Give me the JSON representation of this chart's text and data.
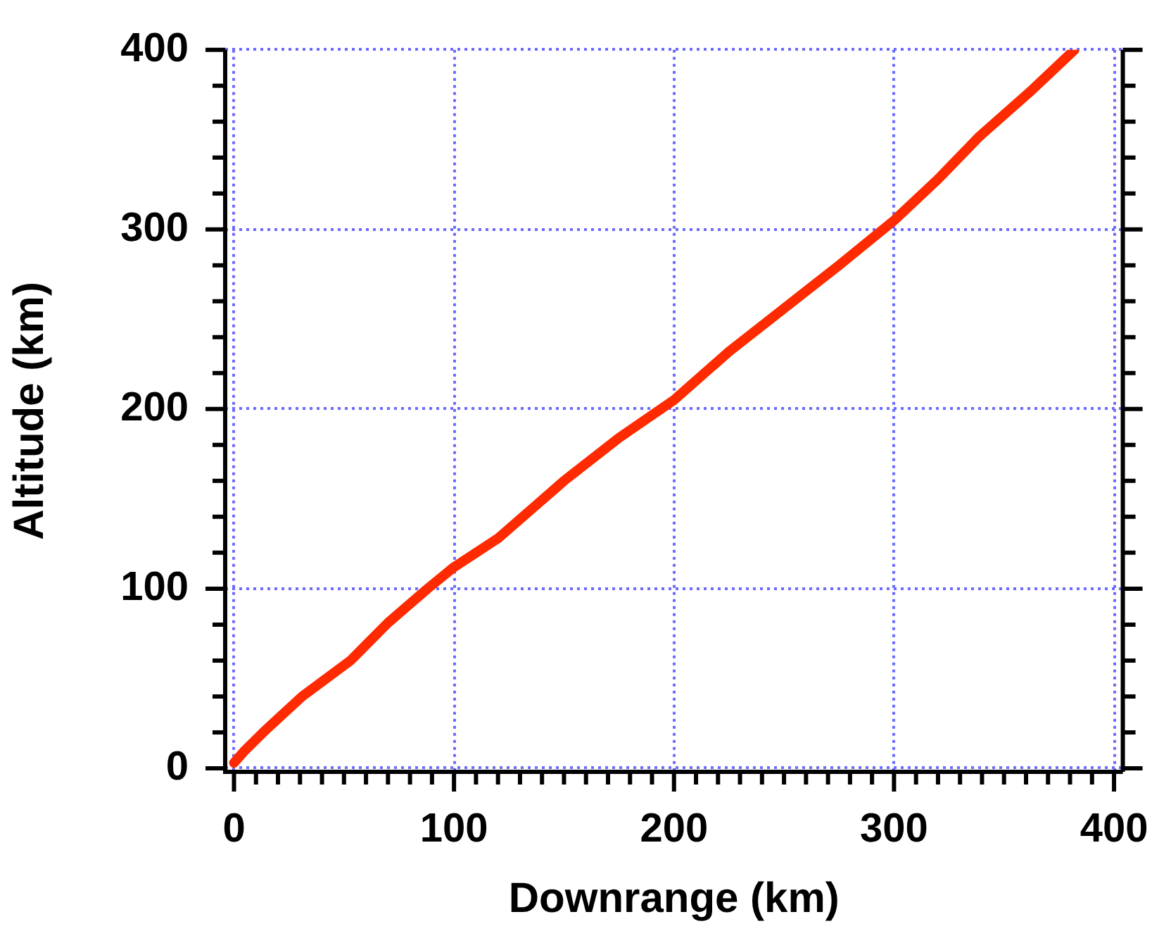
{
  "chart_data": {
    "type": "line",
    "xlabel": "Downrange (km)",
    "ylabel": "Altitude (km)",
    "x": [
      0,
      5,
      15,
      31,
      53,
      70,
      88,
      100,
      120,
      150,
      175,
      200,
      225,
      250,
      275,
      300,
      320,
      339,
      363,
      382
    ],
    "series": [
      {
        "color": "#ff2a00",
        "values": [
          3,
          10,
          22,
          40,
          60,
          81,
          100,
          112,
          128,
          160,
          184,
          205,
          232,
          256,
          280,
          305,
          328,
          352,
          378,
          400
        ]
      }
    ],
    "xlim": [
      -4,
      404
    ],
    "ylim": [
      -2,
      400
    ],
    "xticks": [
      0,
      {
        "value": 10,
        "label": null
      },
      {
        "value": 20,
        "label": null
      },
      {
        "value": 30,
        "label": null
      },
      {
        "value": 40,
        "label": null
      },
      {
        "value": 50,
        "label": null
      },
      {
        "value": 60,
        "label": null
      },
      {
        "value": 70,
        "label": null
      },
      {
        "value": 80,
        "label": null
      },
      {
        "value": 90,
        "label": null
      },
      100,
      {
        "value": 110,
        "label": null
      },
      {
        "value": 120,
        "label": null
      },
      {
        "value": 130,
        "label": null
      },
      {
        "value": 140,
        "label": null
      },
      {
        "value": 150,
        "label": null
      },
      {
        "value": 160,
        "label": null
      },
      {
        "value": 170,
        "label": null
      },
      {
        "value": 180,
        "label": null
      },
      {
        "value": 190,
        "label": null
      },
      200,
      {
        "value": 210,
        "label": null
      },
      {
        "value": 220,
        "label": null
      },
      {
        "value": 230,
        "label": null
      },
      {
        "value": 240,
        "label": null
      },
      {
        "value": 250,
        "label": null
      },
      {
        "value": 260,
        "label": null
      },
      {
        "value": 270,
        "label": null
      },
      {
        "value": 280,
        "label": null
      },
      {
        "value": 290,
        "label": null
      },
      300,
      {
        "value": 310,
        "label": null
      },
      {
        "value": 320,
        "label": null
      },
      {
        "value": 330,
        "label": null
      },
      {
        "value": 340,
        "label": null
      },
      {
        "value": 350,
        "label": null
      },
      {
        "value": 360,
        "label": null
      },
      {
        "value": 370,
        "label": null
      },
      {
        "value": 380,
        "label": null
      },
      {
        "value": 390,
        "label": null
      },
      400
    ],
    "yticks": [
      0,
      {
        "value": 20,
        "label": null
      },
      {
        "value": 40,
        "label": null
      },
      {
        "value": 60,
        "label": null
      },
      {
        "value": 80,
        "label": null
      },
      100,
      {
        "value": 120,
        "label": null
      },
      {
        "value": 140,
        "label": null
      },
      {
        "value": 160,
        "label": null
      },
      {
        "value": 180,
        "label": null
      },
      200,
      {
        "value": 220,
        "label": null
      },
      {
        "value": 240,
        "label": null
      },
      {
        "value": 260,
        "label": null
      },
      {
        "value": 280,
        "label": null
      },
      300,
      {
        "value": 320,
        "label": null
      },
      {
        "value": 340,
        "label": null
      },
      {
        "value": 360,
        "label": null
      },
      {
        "value": 380,
        "label": null
      },
      400
    ],
    "grid": true,
    "legend": false,
    "marker": "none",
    "line_style": "solid"
  }
}
